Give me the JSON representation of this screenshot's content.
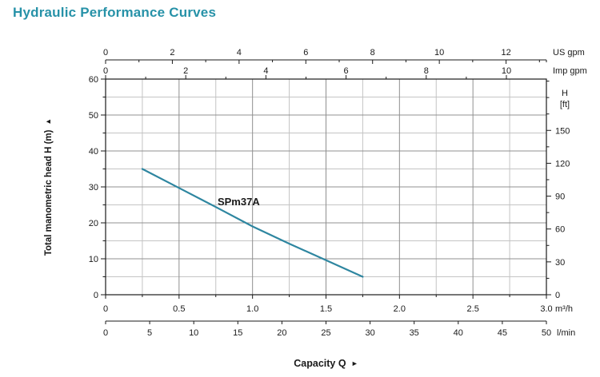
{
  "title": "Hydraulic Performance Curves",
  "colors": {
    "title": "#2792a8",
    "curve": "#2e86a0",
    "text": "#1a1a1a",
    "axis": "#1a1a1a",
    "grid_major": "#909090",
    "grid_minor": "#c4c4c4"
  },
  "chart_data": {
    "type": "line",
    "title": "Hydraulic Performance Curves",
    "xlabel": "Capacity Q",
    "xlabel_arrow": "►",
    "ylabel": "Total manometric head H (m)",
    "ylabel_arrow": "▲",
    "grid": true,
    "x_primary": {
      "unit": "m³/h",
      "min": 0,
      "max": 3,
      "major_step": 0.5,
      "minor_step": 0.25,
      "major_labels": [
        "0",
        "0.5",
        "1.0",
        "1.5",
        "2.0",
        "2.5",
        "3.0"
      ]
    },
    "x_lmin": {
      "unit": "l/min",
      "labels": [
        0,
        5,
        10,
        15,
        20,
        25,
        30,
        35,
        40,
        45,
        50
      ],
      "per_m3h": 16.66667
    },
    "x_us_gpm": {
      "unit": "US gpm",
      "major_labels": [
        0,
        2,
        4,
        6,
        8,
        10,
        12
      ],
      "major_step": 2,
      "minor_step": 1,
      "max_tick": 13,
      "per_m3h": 4.40287
    },
    "x_imp_gpm": {
      "unit": "Imp gpm",
      "major_labels": [
        0,
        2,
        4,
        6,
        8,
        10
      ],
      "major_step": 2,
      "minor_step": 1,
      "max_tick": 10,
      "per_m3h": 3.66615
    },
    "y_primary": {
      "unit": "m",
      "min": 0,
      "max": 60,
      "major_step": 10,
      "minor_step": 5,
      "major_labels": [
        0,
        10,
        20,
        30,
        40,
        50,
        60
      ]
    },
    "y_ft": {
      "unit_line1": "H",
      "unit_line2": "[ft]",
      "major_labels": [
        0,
        30,
        60,
        90,
        120,
        150
      ],
      "major_step": 30,
      "minor_step": 15,
      "max_tick": 195,
      "per_m": 3.28084
    },
    "series": [
      {
        "name": "SPm37A",
        "color": "#2e86a0",
        "points": [
          [
            0.25,
            35
          ],
          [
            0.5,
            29.7
          ],
          [
            0.75,
            24.4
          ],
          [
            1.0,
            19
          ],
          [
            1.25,
            14.2
          ],
          [
            1.5,
            9.6
          ],
          [
            1.75,
            5
          ]
        ],
        "label_at": [
          0.762,
          24.9
        ]
      }
    ]
  }
}
